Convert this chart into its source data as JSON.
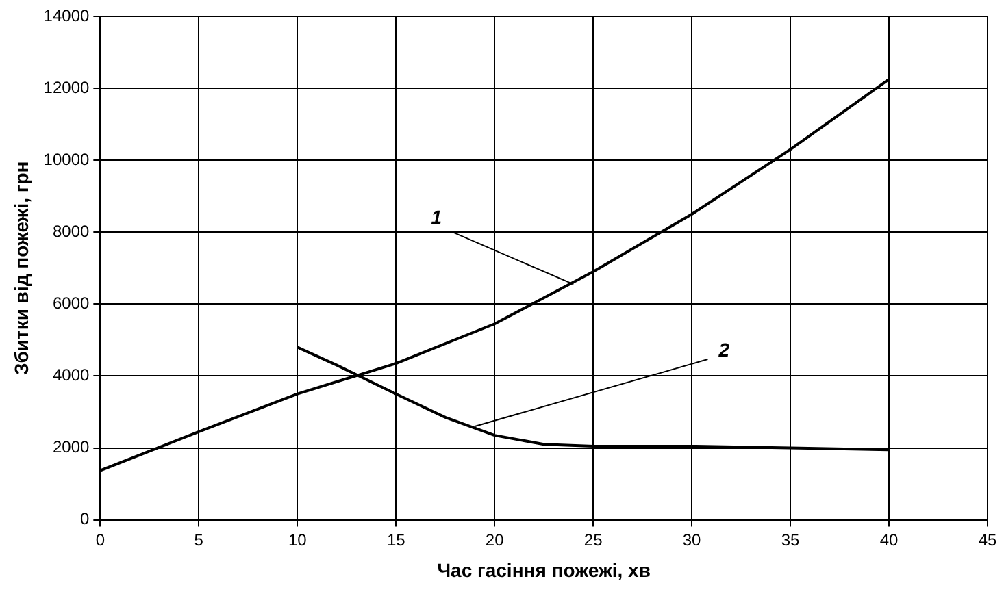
{
  "chart_data": {
    "type": "line",
    "xlabel": "Час гасіння пожежі, хв",
    "ylabel": "Збитки від пожежі, грн",
    "series": [
      {
        "color": "#000000",
        "x": [
          0,
          5,
          10,
          15,
          20,
          25,
          30,
          35,
          40
        ],
        "values": [
          1370,
          2450,
          3500,
          4350,
          5450,
          6900,
          8500,
          10300,
          12250
        ]
      },
      {
        "color": "#000000",
        "x": [
          10,
          12,
          15,
          17.5,
          20,
          22.5,
          25,
          30,
          35,
          40
        ],
        "values": [
          4800,
          4300,
          3500,
          2850,
          2350,
          2100,
          2050,
          2050,
          2000,
          1950
        ]
      }
    ],
    "annotations": [
      {
        "text": "1",
        "x": 24,
        "y": 6550
      },
      {
        "text": "2",
        "x": 19,
        "y": 2600
      }
    ],
    "xlim": [
      0,
      45
    ],
    "xticks": [
      0,
      5,
      10,
      15,
      20,
      25,
      30,
      35,
      40,
      45
    ],
    "ylim": [
      0,
      14000
    ],
    "yticks": [
      0,
      2000,
      4000,
      6000,
      8000,
      10000,
      12000,
      14000
    ],
    "grid": true,
    "marker": "none",
    "line_style": "solid",
    "legend": false
  }
}
